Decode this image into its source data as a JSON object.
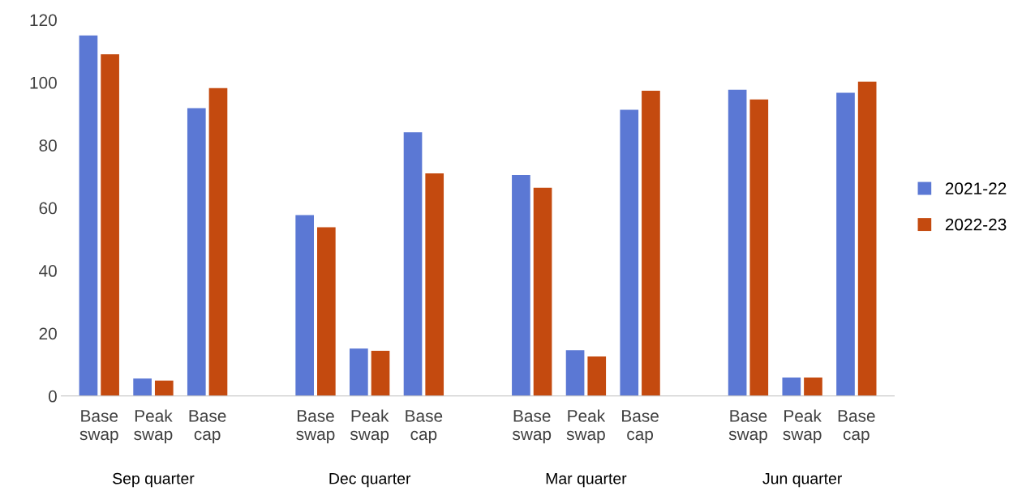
{
  "chart_data": {
    "type": "bar",
    "categories": [
      "Base swap",
      "Peak swap",
      "Base cap",
      "Base swap",
      "Peak swap",
      "Base cap",
      "Base swap",
      "Peak swap",
      "Base cap",
      "Base swap",
      "Peak swap",
      "Base cap"
    ],
    "series": [
      {
        "name": "2021-22",
        "color": "#5b78d4",
        "values": [
          115,
          5.6,
          91.8,
          57.7,
          15.1,
          84.1,
          70.5,
          14.6,
          91.3,
          97.7,
          5.9,
          96.7
        ]
      },
      {
        "name": "2022-23",
        "color": "#c44a0f",
        "values": [
          109,
          4.9,
          98.2,
          53.8,
          14.4,
          71.0,
          66.4,
          12.6,
          97.4,
          94.6,
          5.9,
          100.3
        ]
      }
    ],
    "annotations": [
      "Sep quarter",
      "Dec quarter",
      "Mar quarter",
      "Jun quarter"
    ],
    "ylim": [
      0,
      120
    ],
    "yticks": [
      0,
      20,
      40,
      60,
      80,
      100,
      120
    ],
    "grid": false,
    "legend": "right"
  }
}
